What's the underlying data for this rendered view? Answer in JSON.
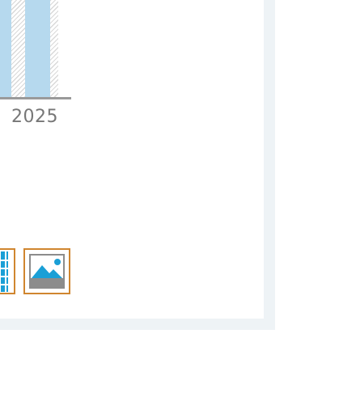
{
  "chart_data": {
    "type": "bar",
    "categories": [
      "2025"
    ],
    "series": [
      {
        "values": [
          null
        ]
      }
    ],
    "xlabel": "",
    "ylabel": "",
    "grid": false
  },
  "colors": {
    "bar_fill": "#b6d9ee",
    "hatch": "#d9d9d9",
    "axis": "#9a9a9a",
    "tick_text": "#777777",
    "button_border": "#d0862f",
    "icon_accent": "#1a9fd6",
    "icon_grey": "#8c8c8c",
    "panel_border": "#eef3f6"
  },
  "view_toggle": {
    "table_icon": "table-grid-icon",
    "image_icon": "image-icon",
    "selected": "image"
  }
}
